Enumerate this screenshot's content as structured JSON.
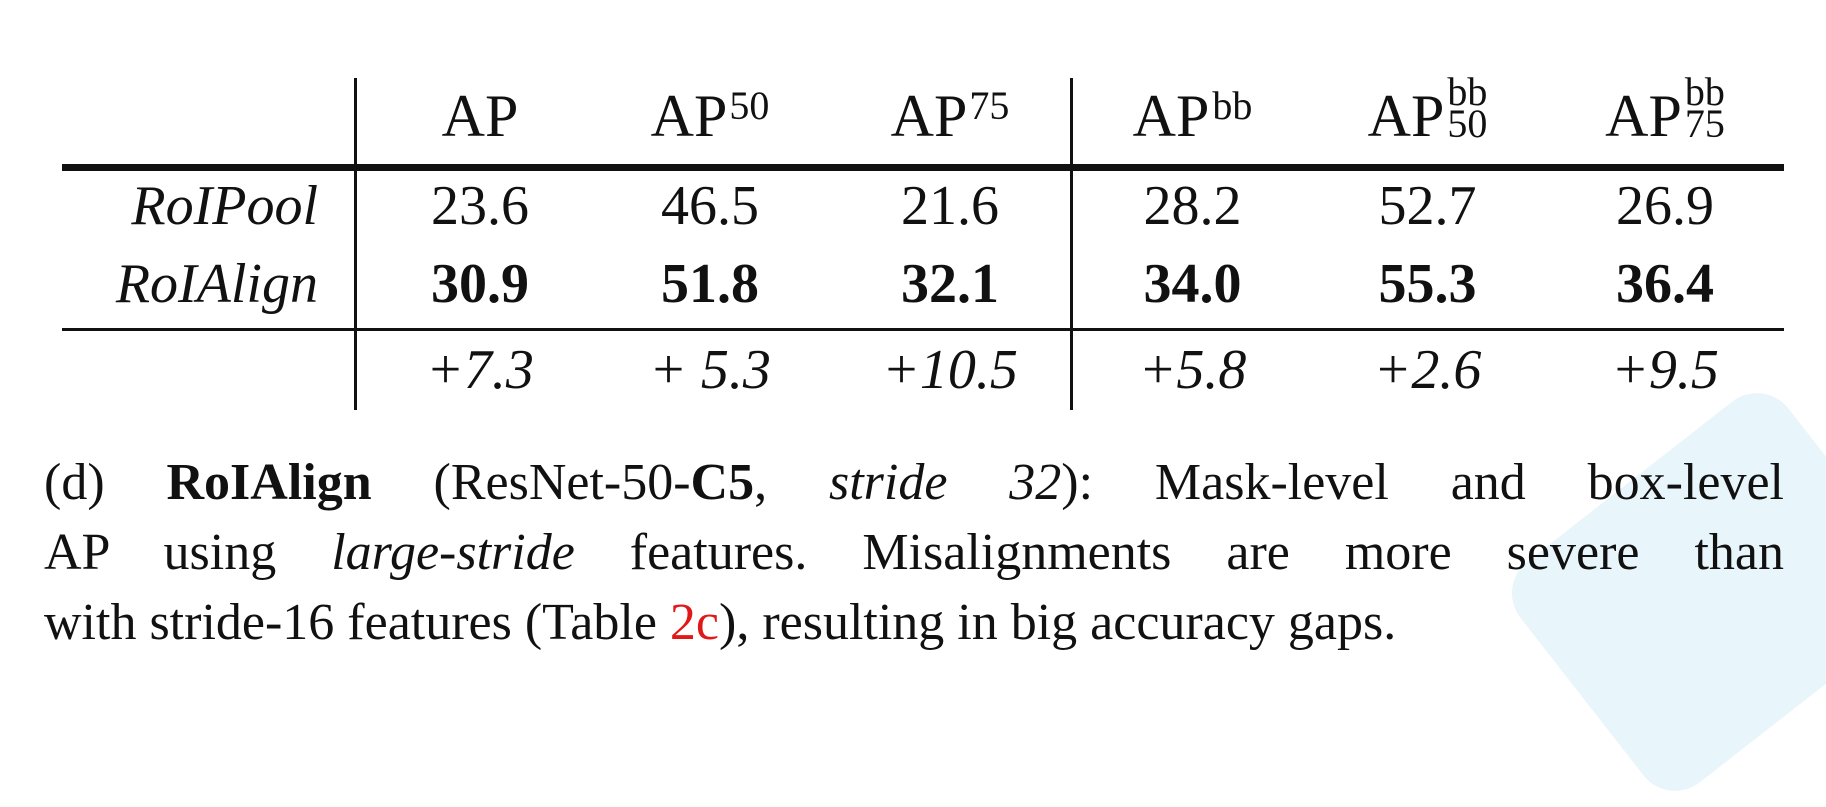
{
  "table": {
    "columns": [
      {
        "base": "AP",
        "sup": "",
        "sub": ""
      },
      {
        "base": "AP",
        "sup": "",
        "sub": "50"
      },
      {
        "base": "AP",
        "sup": "",
        "sub": "75"
      },
      {
        "base": "AP",
        "sup": "bb",
        "sub": ""
      },
      {
        "base": "AP",
        "sup": "bb",
        "sub": "50"
      },
      {
        "base": "AP",
        "sup": "bb",
        "sub": "75"
      }
    ],
    "rows": [
      {
        "label": "RoIPool",
        "values": [
          "23.6",
          "46.5",
          "21.6",
          "28.2",
          "52.7",
          "26.9"
        ],
        "bold": false
      },
      {
        "label": "RoIAlign",
        "values": [
          "30.9",
          "51.8",
          "32.1",
          "34.0",
          "55.3",
          "36.4"
        ],
        "bold": true
      }
    ],
    "deltas": [
      "+7.3",
      "+ 5.3",
      "+10.5",
      "+5.8",
      "+2.6",
      "+9.5"
    ]
  },
  "caption": {
    "prefix": "(d) ",
    "method": "RoIAlign",
    "paren_open": " (ResNet-50-",
    "backbone": "C5",
    "comma": ", ",
    "stride": "stride 32",
    "after_stride": "): Mask-level and box-level",
    "line2_start": "AP using ",
    "large_stride": "large-stride",
    "line2_end": " features. Misalignments are more severe than",
    "line3_start": "with stride-16 features (Table ",
    "table_ref": "2c",
    "line3_end": "), resulting in big accuracy gaps."
  }
}
